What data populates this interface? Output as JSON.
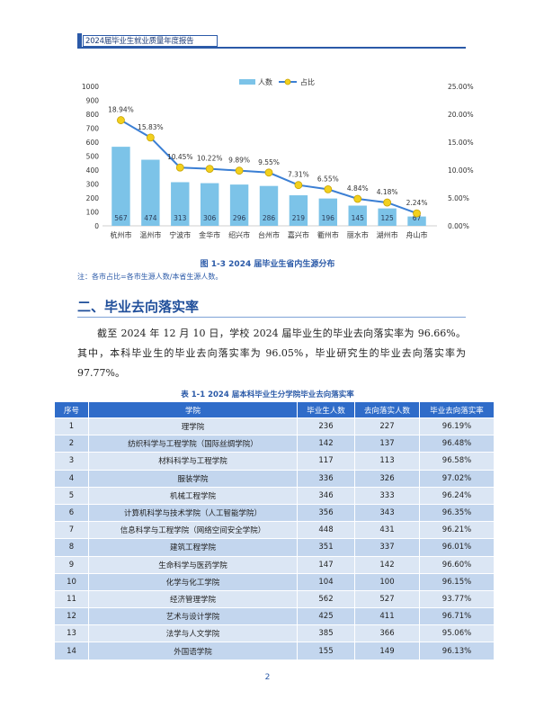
{
  "header": {
    "title": "2024届毕业生就业质量年度报告"
  },
  "chart_data": {
    "type": "bar",
    "categories": [
      "杭州市",
      "温州市",
      "宁波市",
      "金华市",
      "绍兴市",
      "台州市",
      "嘉兴市",
      "衢州市",
      "丽水市",
      "湖州市",
      "舟山市"
    ],
    "series": [
      {
        "name": "人数",
        "type": "bar",
        "axis": "left",
        "values": [
          567,
          474,
          313,
          306,
          296,
          286,
          219,
          196,
          145,
          125,
          67
        ]
      },
      {
        "name": "占比",
        "type": "line",
        "axis": "right",
        "values": [
          18.94,
          15.83,
          10.45,
          10.22,
          9.89,
          9.55,
          7.31,
          6.55,
          4.84,
          4.18,
          2.24
        ]
      }
    ],
    "bar_labels": [
      "567",
      "474",
      "313",
      "306",
      "296",
      "286",
      "219",
      "196",
      "145",
      "125",
      "67"
    ],
    "point_labels": [
      "18.94%",
      "15.83%",
      "10.45%",
      "10.22%",
      "9.89%",
      "9.55%",
      "7.31%",
      "6.55%",
      "4.84%",
      "4.18%",
      "2.24%"
    ],
    "y_left_ticks": [
      "0",
      "100",
      "200",
      "300",
      "400",
      "500",
      "600",
      "700",
      "800",
      "900",
      "1000"
    ],
    "y_right_ticks": [
      "0.00%",
      "5.00%",
      "10.00%",
      "15.00%",
      "20.00%",
      "25.00%"
    ],
    "ylim_left": [
      0,
      1000
    ],
    "ylim_right": [
      0,
      25
    ],
    "legend_position": "top",
    "grid": false,
    "colors": {
      "bar": "#7cc3e8",
      "line": "#3b7fd4",
      "marker": "#f2d01e",
      "marker_edge": "#c9a400"
    }
  },
  "figure_caption": "图 1-3  2024 届毕业生省内生源分布",
  "figure_note": "注：各市占比=各市生源人数/本省生源人数。",
  "section_title": "二、毕业去向落实率",
  "paragraph": "截至 2024 年 12 月 10 日，学校 2024 届毕业生的毕业去向落实率为 96.66%。其中，本科毕业生的毕业去向落实率为 96.05%，毕业研究生的毕业去向落实率为 97.77%。",
  "table_caption": "表 1-1  2024 届本科毕业生分学院毕业去向落实率",
  "table": {
    "headers": [
      "序号",
      "学院",
      "毕业生人数",
      "去向落实人数",
      "毕业去向落实率"
    ],
    "rows": [
      [
        "1",
        "理学院",
        "236",
        "227",
        "96.19%"
      ],
      [
        "2",
        "纺织科学与工程学院（国际丝绸学院）",
        "142",
        "137",
        "96.48%"
      ],
      [
        "3",
        "材料科学与工程学院",
        "117",
        "113",
        "96.58%"
      ],
      [
        "4",
        "服装学院",
        "336",
        "326",
        "97.02%"
      ],
      [
        "5",
        "机械工程学院",
        "346",
        "333",
        "96.24%"
      ],
      [
        "6",
        "计算机科学与技术学院（人工智能学院）",
        "356",
        "343",
        "96.35%"
      ],
      [
        "7",
        "信息科学与工程学院（网络空间安全学院）",
        "448",
        "431",
        "96.21%"
      ],
      [
        "8",
        "建筑工程学院",
        "351",
        "337",
        "96.01%"
      ],
      [
        "9",
        "生命科学与医药学院",
        "147",
        "142",
        "96.60%"
      ],
      [
        "10",
        "化学与化工学院",
        "104",
        "100",
        "96.15%"
      ],
      [
        "11",
        "经济管理学院",
        "562",
        "527",
        "93.77%"
      ],
      [
        "12",
        "艺术与设计学院",
        "425",
        "411",
        "96.71%"
      ],
      [
        "13",
        "法学与人文学院",
        "385",
        "366",
        "95.06%"
      ],
      [
        "14",
        "外国语学院",
        "155",
        "149",
        "96.13%"
      ]
    ]
  },
  "page_number": "2"
}
